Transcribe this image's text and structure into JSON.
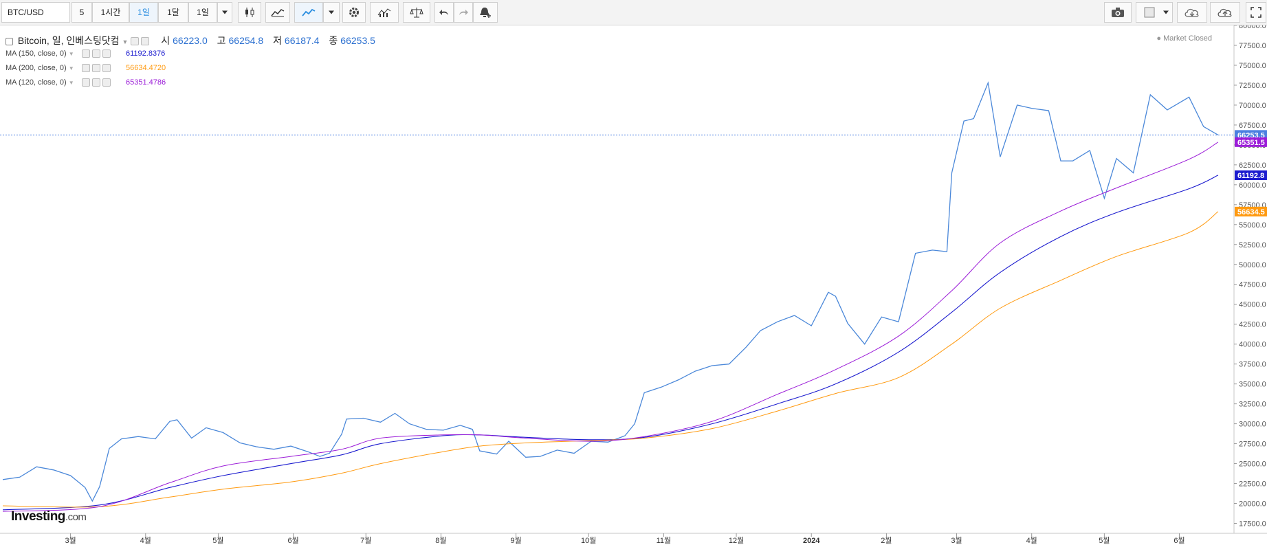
{
  "toolbar": {
    "symbol": "BTC/USD",
    "interval_5": "5",
    "interval_1h": "1시간",
    "interval_1d": "1일",
    "interval_1mo": "1달",
    "range": "1일"
  },
  "legend": {
    "name": "Bitcoin, 일, 인베스팅닷컴",
    "open_label": "시",
    "open": "66223.0",
    "high_label": "고",
    "high": "66254.8",
    "low_label": "저",
    "low": "66187.4",
    "close_label": "종",
    "close": "66253.5",
    "market_status": "Market Closed"
  },
  "indicators": [
    {
      "label": "MA (150, close, 0)",
      "value": "61192.8376",
      "color": "#1c1ccf",
      "tag": "61192.8"
    },
    {
      "label": "MA (200, close, 0)",
      "value": "56634.4720",
      "color": "#ff9a10",
      "tag": "56634.5"
    },
    {
      "label": "MA (120, close, 0)",
      "value": "65351.4786",
      "color": "#9b1cd8",
      "tag": "65351.5"
    }
  ],
  "price_tag": "66253.5",
  "logo": {
    "main": "Investing",
    "suffix": ".com"
  },
  "colors": {
    "price": "#4b88d9",
    "price_tag": "#4b7fe0",
    "grid": "#ffffff",
    "axis": "#c7c7c7"
  },
  "chart_data": {
    "type": "line",
    "x": [
      "2023-02-01",
      "2023-02-08",
      "2023-02-15",
      "2023-02-22",
      "2023-03-01",
      "2023-03-07",
      "2023-03-10",
      "2023-03-13",
      "2023-03-17",
      "2023-03-22",
      "2023-03-29",
      "2023-04-05",
      "2023-04-11",
      "2023-04-14",
      "2023-04-20",
      "2023-04-26",
      "2023-05-03",
      "2023-05-10",
      "2023-05-17",
      "2023-05-24",
      "2023-05-31",
      "2023-06-07",
      "2023-06-12",
      "2023-06-16",
      "2023-06-21",
      "2023-06-23",
      "2023-06-30",
      "2023-07-07",
      "2023-07-13",
      "2023-07-19",
      "2023-07-26",
      "2023-08-02",
      "2023-08-09",
      "2023-08-14",
      "2023-08-17",
      "2023-08-24",
      "2023-08-29",
      "2023-09-05",
      "2023-09-11",
      "2023-09-18",
      "2023-09-25",
      "2023-10-02",
      "2023-10-09",
      "2023-10-16",
      "2023-10-20",
      "2023-10-24",
      "2023-10-31",
      "2023-11-07",
      "2023-11-14",
      "2023-11-21",
      "2023-11-28",
      "2023-12-05",
      "2023-12-11",
      "2023-12-18",
      "2023-12-25",
      "2024-01-01",
      "2024-01-08",
      "2024-01-11",
      "2024-01-16",
      "2024-01-23",
      "2024-01-30",
      "2024-02-06",
      "2024-02-13",
      "2024-02-20",
      "2024-02-26",
      "2024-02-28",
      "2024-03-04",
      "2024-03-08",
      "2024-03-14",
      "2024-03-19",
      "2024-03-26",
      "2024-04-01",
      "2024-04-08",
      "2024-04-13",
      "2024-04-18",
      "2024-04-25",
      "2024-05-01",
      "2024-05-06",
      "2024-05-13",
      "2024-05-20",
      "2024-05-27",
      "2024-06-05",
      "2024-06-11",
      "2024-06-17"
    ],
    "series": [
      {
        "name": "Bitcoin",
        "values": [
          23000,
          23300,
          24600,
          24200,
          23500,
          22000,
          20300,
          22100,
          26900,
          28100,
          28400,
          28100,
          30300,
          30500,
          28200,
          29500,
          28900,
          27600,
          27100,
          26800,
          27200,
          26500,
          25900,
          26300,
          28700,
          30600,
          30700,
          30200,
          31300,
          30000,
          29300,
          29200,
          29800,
          29300,
          26600,
          26200,
          27800,
          25800,
          25900,
          26700,
          26300,
          27800,
          27700,
          28500,
          30000,
          33900,
          34600,
          35500,
          36600,
          37300,
          37500,
          39600,
          41700,
          42800,
          43600,
          42300,
          46500,
          46000,
          42600,
          40000,
          43400,
          42800,
          51400,
          51800,
          51600,
          61500,
          68000,
          68300,
          72800,
          63500,
          70000,
          69600,
          69300,
          63000,
          63000,
          64300,
          58300,
          63300,
          61500,
          71300,
          69400,
          71000,
          67300,
          66253
        ]
      },
      {
        "name": "MA (150, close, 0)",
        "values": [
          19200,
          null,
          null,
          null,
          null,
          null,
          null,
          19800,
          null,
          null,
          null,
          null,
          22000,
          null,
          null,
          null,
          23500,
          null,
          null,
          null,
          25000,
          null,
          null,
          null,
          26100,
          null,
          null,
          27500,
          null,
          null,
          null,
          28500,
          null,
          null,
          28600,
          null,
          null,
          28300,
          null,
          null,
          null,
          28000,
          null,
          null,
          null,
          28300,
          null,
          null,
          null,
          30000,
          null,
          null,
          null,
          32500,
          null,
          null,
          null,
          35000,
          null,
          null,
          null,
          39000,
          null,
          null,
          null,
          44000,
          null,
          null,
          null,
          49000,
          null,
          null,
          null,
          53500,
          null,
          null,
          null,
          56500,
          null,
          null,
          null,
          59500,
          null,
          61200
        ]
      },
      {
        "name": "MA (200, close, 0)",
        "values": [
          19700,
          null,
          null,
          null,
          null,
          null,
          null,
          19600,
          null,
          null,
          null,
          null,
          20800,
          null,
          null,
          null,
          21800,
          null,
          null,
          null,
          22700,
          null,
          null,
          null,
          23800,
          null,
          null,
          25000,
          null,
          null,
          null,
          26500,
          null,
          null,
          27200,
          null,
          null,
          27600,
          null,
          null,
          null,
          27900,
          null,
          null,
          null,
          28200,
          null,
          null,
          null,
          29400,
          null,
          null,
          null,
          31600,
          null,
          null,
          null,
          33800,
          null,
          null,
          null,
          35800,
          null,
          null,
          null,
          40000,
          null,
          null,
          null,
          44500,
          null,
          null,
          null,
          48000,
          null,
          null,
          null,
          51000,
          null,
          null,
          null,
          54000,
          null,
          56634
        ]
      },
      {
        "name": "MA (120, close, 0)",
        "values": [
          19000,
          null,
          null,
          null,
          null,
          null,
          null,
          19600,
          null,
          null,
          null,
          null,
          22600,
          null,
          null,
          null,
          24700,
          null,
          null,
          null,
          25900,
          null,
          null,
          null,
          26800,
          null,
          null,
          28200,
          null,
          null,
          null,
          28600,
          null,
          null,
          28600,
          null,
          null,
          28200,
          null,
          null,
          null,
          27800,
          null,
          null,
          null,
          28400,
          null,
          null,
          null,
          30300,
          null,
          null,
          null,
          33700,
          null,
          null,
          null,
          36800,
          null,
          null,
          null,
          41000,
          null,
          null,
          null,
          46700,
          null,
          null,
          null,
          52700,
          null,
          null,
          null,
          56700,
          null,
          null,
          null,
          59600,
          null,
          null,
          null,
          63200,
          null,
          65351
        ]
      }
    ],
    "xticks": [
      {
        "date": "2023-03-01",
        "label": "3월"
      },
      {
        "date": "2023-04-01",
        "label": "4월"
      },
      {
        "date": "2023-05-01",
        "label": "5월"
      },
      {
        "date": "2023-06-01",
        "label": "6월"
      },
      {
        "date": "2023-07-01",
        "label": "7월"
      },
      {
        "date": "2023-08-01",
        "label": "8월"
      },
      {
        "date": "2023-09-01",
        "label": "9월"
      },
      {
        "date": "2023-10-01",
        "label": "10월"
      },
      {
        "date": "2023-11-01",
        "label": "11월"
      },
      {
        "date": "2023-12-01",
        "label": "12월"
      },
      {
        "date": "2024-01-01",
        "label": "2024"
      },
      {
        "date": "2024-02-01",
        "label": "2월"
      },
      {
        "date": "2024-03-01",
        "label": "3월"
      },
      {
        "date": "2024-04-01",
        "label": "4월"
      },
      {
        "date": "2024-05-01",
        "label": "5월"
      },
      {
        "date": "2024-06-01",
        "label": "6월"
      }
    ],
    "xlim": [
      "2023-02-01",
      "2024-06-23"
    ],
    "ylim": [
      16250,
      80000
    ],
    "yticks": [
      17500,
      20000,
      22500,
      25000,
      27500,
      30000,
      32500,
      35000,
      37500,
      40000,
      42500,
      45000,
      47500,
      50000,
      52500,
      55000,
      57500,
      60000,
      62500,
      65000,
      67500,
      70000,
      72500,
      75000,
      77500,
      80000
    ],
    "ytick_labels": [
      "17500.0",
      "20000.0",
      "22500.0",
      "25000.0",
      "27500.0",
      "30000.0",
      "32500.0",
      "35000.0",
      "37500.0",
      "40000.0",
      "42500.0",
      "45000.0",
      "47500.0",
      "50000.0",
      "52500.0",
      "55000.0",
      "57500.0",
      "60000.0",
      "62500.0",
      "65000.0",
      "67500.0",
      "70000.0",
      "72500.0",
      "75000.0",
      "77500.0",
      "80000.0"
    ],
    "last_price": 66253.5,
    "grid": false,
    "legend_position": "top-left"
  }
}
